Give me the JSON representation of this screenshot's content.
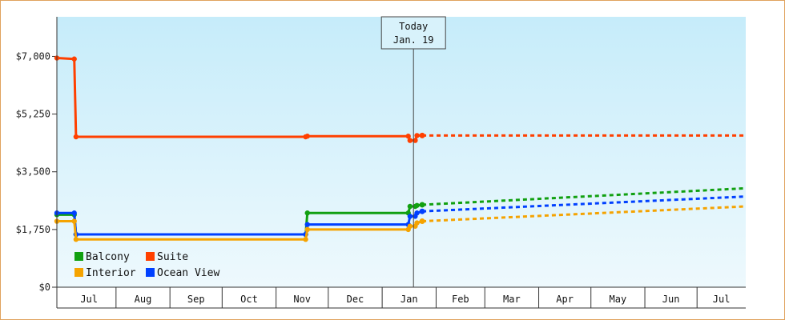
{
  "chart_data": {
    "type": "line",
    "title": "",
    "xlabel": "",
    "ylabel": "",
    "y_ticks": [
      "$0",
      "$1,750",
      "$3,500",
      "$5,250",
      "$7,000"
    ],
    "y_tick_values": [
      0,
      1750,
      3500,
      5250,
      7000
    ],
    "ylim": [
      0,
      8200
    ],
    "x_start": "2025-06-28",
    "x_end": "2026-07-29",
    "months": [
      {
        "label": "Jul",
        "start": "2025-07-01"
      },
      {
        "label": "Aug",
        "start": "2025-08-01"
      },
      {
        "label": "Sep",
        "start": "2025-09-01"
      },
      {
        "label": "Oct",
        "start": "2025-10-01"
      },
      {
        "label": "Nov",
        "start": "2025-11-01"
      },
      {
        "label": "Dec",
        "start": "2025-12-01"
      },
      {
        "label": "Jan",
        "start": "2026-01-01"
      },
      {
        "label": "Feb",
        "start": "2026-02-01"
      },
      {
        "label": "Mar",
        "start": "2026-03-01"
      },
      {
        "label": "Apr",
        "start": "2026-04-01"
      },
      {
        "label": "May",
        "start": "2026-05-01"
      },
      {
        "label": "Jun",
        "start": "2026-06-01"
      },
      {
        "label": "Jul",
        "start": "2026-07-01"
      }
    ],
    "today": {
      "line1": "Today",
      "line2": "Jan. 19",
      "date": "2026-01-19"
    },
    "legend_placement": "bottom-left",
    "grid": false,
    "series": [
      {
        "name": "Suite",
        "color": "#ff4000",
        "history": [
          {
            "x": "2025-06-28",
            "y": 6950
          },
          {
            "x": "2025-07-08",
            "y": 6920
          },
          {
            "x": "2025-07-09",
            "y": 4560
          },
          {
            "x": "2025-11-18",
            "y": 4560
          },
          {
            "x": "2025-11-19",
            "y": 4580
          },
          {
            "x": "2026-01-16",
            "y": 4580
          },
          {
            "x": "2026-01-17",
            "y": 4450
          },
          {
            "x": "2026-01-20",
            "y": 4450
          },
          {
            "x": "2026-01-21",
            "y": 4600
          },
          {
            "x": "2026-01-24",
            "y": 4600
          }
        ],
        "projection": [
          {
            "x": "2026-01-24",
            "y": 4600
          },
          {
            "x": "2026-07-29",
            "y": 4600
          }
        ]
      },
      {
        "name": "Balcony",
        "color": "#11a011",
        "history": [
          {
            "x": "2025-06-28",
            "y": 2200
          },
          {
            "x": "2025-07-08",
            "y": 2200
          },
          {
            "x": "2025-07-09",
            "y": 1600
          },
          {
            "x": "2025-11-18",
            "y": 1600
          },
          {
            "x": "2025-11-19",
            "y": 2250
          },
          {
            "x": "2026-01-16",
            "y": 2250
          },
          {
            "x": "2026-01-17",
            "y": 2450
          },
          {
            "x": "2026-01-20",
            "y": 2450
          },
          {
            "x": "2026-01-21",
            "y": 2480
          },
          {
            "x": "2026-01-24",
            "y": 2500
          }
        ],
        "projection": [
          {
            "x": "2026-01-24",
            "y": 2500
          },
          {
            "x": "2026-07-29",
            "y": 3000
          }
        ]
      },
      {
        "name": "Ocean View",
        "color": "#0040ff",
        "history": [
          {
            "x": "2025-06-28",
            "y": 2250
          },
          {
            "x": "2025-07-08",
            "y": 2250
          },
          {
            "x": "2025-07-09",
            "y": 1600
          },
          {
            "x": "2025-11-18",
            "y": 1600
          },
          {
            "x": "2025-11-19",
            "y": 1900
          },
          {
            "x": "2026-01-16",
            "y": 1900
          },
          {
            "x": "2026-01-17",
            "y": 2150
          },
          {
            "x": "2026-01-20",
            "y": 2150
          },
          {
            "x": "2026-01-21",
            "y": 2250
          },
          {
            "x": "2026-01-24",
            "y": 2300
          }
        ],
        "projection": [
          {
            "x": "2026-01-24",
            "y": 2300
          },
          {
            "x": "2026-07-29",
            "y": 2750
          }
        ]
      },
      {
        "name": "Interior",
        "color": "#f5a300",
        "history": [
          {
            "x": "2025-06-28",
            "y": 2000
          },
          {
            "x": "2025-07-08",
            "y": 2000
          },
          {
            "x": "2025-07-09",
            "y": 1450
          },
          {
            "x": "2025-11-18",
            "y": 1450
          },
          {
            "x": "2025-11-19",
            "y": 1750
          },
          {
            "x": "2026-01-16",
            "y": 1750
          },
          {
            "x": "2026-01-17",
            "y": 1850
          },
          {
            "x": "2026-01-20",
            "y": 1850
          },
          {
            "x": "2026-01-21",
            "y": 1950
          },
          {
            "x": "2026-01-24",
            "y": 2000
          }
        ],
        "projection": [
          {
            "x": "2026-01-24",
            "y": 2000
          },
          {
            "x": "2026-07-29",
            "y": 2450
          }
        ]
      }
    ],
    "legend": [
      {
        "name": "Balcony",
        "color": "#11a011"
      },
      {
        "name": "Suite",
        "color": "#ff4000"
      },
      {
        "name": "Interior",
        "color": "#f5a300"
      },
      {
        "name": "Ocean View",
        "color": "#0040ff"
      }
    ]
  }
}
